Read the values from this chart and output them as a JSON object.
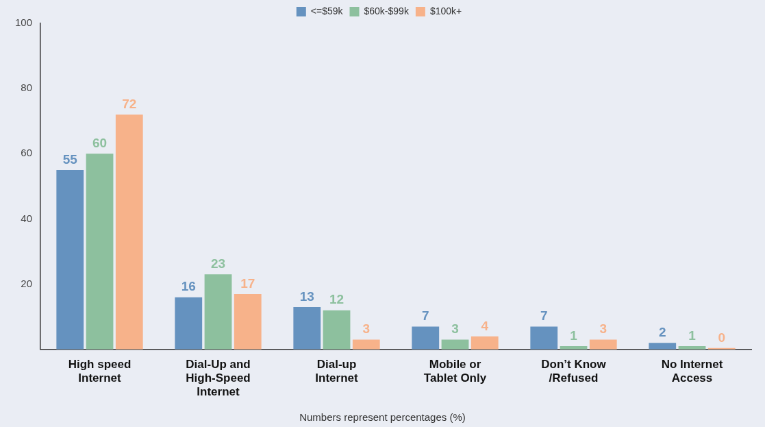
{
  "chart_data": {
    "type": "bar",
    "categories": [
      "High speed Internet",
      "Dial-Up and High-Speed Internet",
      "Dial-up Internet",
      "Mobile or Tablet Only",
      "Don’t Know /Refused",
      "No Internet Access"
    ],
    "series": [
      {
        "name": "<=$59k",
        "color": "#6592bf",
        "values": [
          55,
          16,
          13,
          7,
          7,
          2
        ]
      },
      {
        "name": "$60k-$99k",
        "color": "#8dc09e",
        "values": [
          60,
          23,
          12,
          3,
          1,
          1
        ]
      },
      {
        "name": "$100k+",
        "color": "#f7b28a",
        "values": [
          72,
          17,
          3,
          4,
          3,
          0
        ]
      }
    ],
    "ylim": [
      0,
      100
    ],
    "yticks": [
      20,
      40,
      60,
      80,
      100
    ],
    "grid": false,
    "legend": "top",
    "data_labels": true,
    "annotations": [
      "Numbers represent percentages (%)"
    ]
  }
}
